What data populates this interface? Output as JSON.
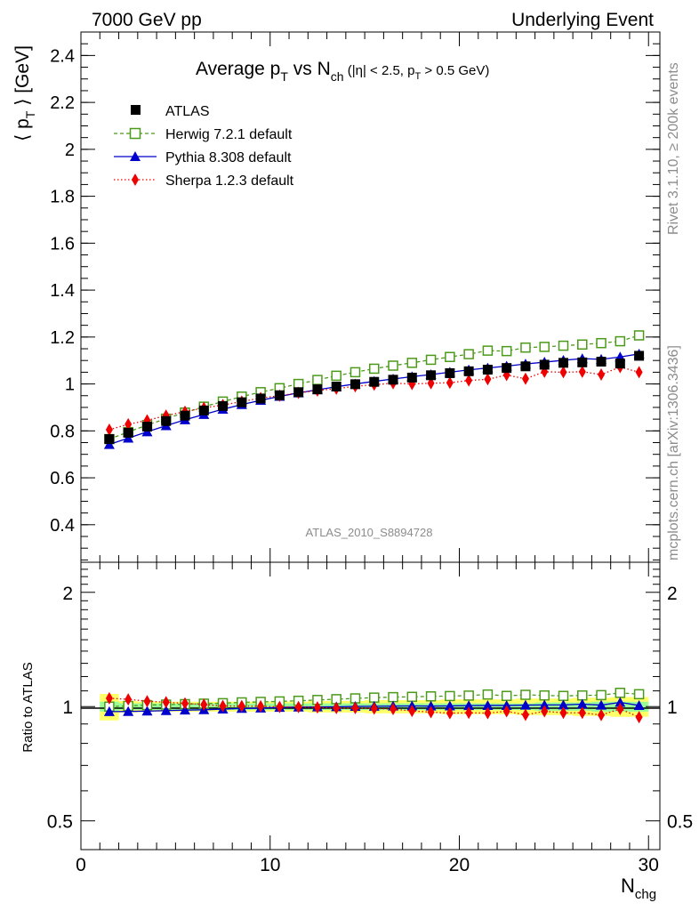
{
  "header": {
    "left": "7000 GeV pp",
    "right": "Underlying Event"
  },
  "side_text": {
    "rivet": "Rivet 3.1.10, ≥ 200k events",
    "mcplots": "mcplots.cern.ch [arXiv:1306.3436]"
  },
  "watermark": "ATLAS_2010_S8894728",
  "colors": {
    "atlas": "#000000",
    "herwig": "#4c9a1a",
    "pythia": "#0000cc",
    "sherpa": "#ee0000",
    "band_inner": "#99ff99",
    "band_outer": "#ffff66"
  },
  "chart_data": [
    {
      "type": "line",
      "panel": "main",
      "title_parts": {
        "main": "Average p",
        "sub1": "T",
        "mid": " vs N",
        "sub2": "ch",
        "cut1": " (|η| < 2.5, p",
        "cut_sub": "T",
        "cut2": " > 0.5 GeV)"
      },
      "ylabel_parts": {
        "open": "⟨ p",
        "sub": "T",
        "close": " ⟩ [GeV]"
      },
      "xlim": [
        0,
        30.6
      ],
      "ylim": [
        0.24,
        2.5
      ],
      "yticks": [
        0.4,
        0.6,
        0.8,
        1,
        1.2,
        1.4,
        1.6,
        1.8,
        2,
        2.2,
        2.4
      ],
      "ytick_labels": [
        "0.4",
        "0.6",
        "0.8",
        "1",
        "1.2",
        "1.4",
        "1.6",
        "1.8",
        "2",
        "2.2",
        "2.4"
      ],
      "x": [
        1.5,
        2.5,
        3.5,
        4.5,
        5.5,
        6.5,
        7.5,
        8.5,
        9.5,
        10.5,
        11.5,
        12.5,
        13.5,
        14.5,
        15.5,
        16.5,
        17.5,
        18.5,
        19.5,
        20.5,
        21.5,
        22.5,
        23.5,
        24.5,
        25.5,
        26.5,
        27.5,
        28.5,
        29.5
      ],
      "series": [
        {
          "name": "ATLAS",
          "marker": "square-filled",
          "line": "none",
          "values": [
            0.765,
            0.792,
            0.818,
            0.842,
            0.865,
            0.887,
            0.906,
            0.922,
            0.938,
            0.952,
            0.965,
            0.977,
            0.989,
            0.999,
            1.009,
            1.018,
            1.027,
            1.037,
            1.046,
            1.054,
            1.061,
            1.068,
            1.075,
            1.082,
            1.09,
            1.092,
            1.095,
            1.087,
            1.12
          ]
        },
        {
          "name": "Herwig 7.2.1 default",
          "marker": "square-open",
          "line": "dashed",
          "values": [
            0.765,
            0.795,
            0.825,
            0.852,
            0.878,
            0.903,
            0.925,
            0.946,
            0.965,
            0.982,
            1.0,
            1.017,
            1.035,
            1.05,
            1.065,
            1.078,
            1.09,
            1.103,
            1.115,
            1.127,
            1.142,
            1.14,
            1.155,
            1.158,
            1.163,
            1.168,
            1.174,
            1.182,
            1.207
          ]
        },
        {
          "name": "Pythia 8.308 default",
          "marker": "triangle-filled",
          "line": "solid",
          "values": [
            0.742,
            0.769,
            0.796,
            0.822,
            0.847,
            0.87,
            0.892,
            0.912,
            0.93,
            0.947,
            0.962,
            0.975,
            0.988,
            1.0,
            1.011,
            1.021,
            1.031,
            1.04,
            1.05,
            1.06,
            1.068,
            1.076,
            1.085,
            1.093,
            1.101,
            1.108,
            1.105,
            1.115,
            1.128
          ]
        },
        {
          "name": "Sherpa 1.2.3 default",
          "marker": "diamond-filled",
          "line": "dotted",
          "values": [
            0.805,
            0.828,
            0.845,
            0.865,
            0.882,
            0.898,
            0.91,
            0.925,
            0.94,
            0.95,
            0.962,
            0.972,
            0.98,
            0.99,
            0.997,
            1.003,
            1.0,
            1.003,
            1.005,
            1.015,
            1.02,
            1.038,
            1.022,
            1.052,
            1.05,
            1.052,
            1.04,
            1.072,
            1.05
          ]
        }
      ]
    },
    {
      "type": "line",
      "panel": "ratio",
      "ylabel": "Ratio to ATLAS",
      "xlabel_parts": {
        "main": "N",
        "sub": "chg"
      },
      "xlim": [
        0,
        30.6
      ],
      "xticks": [
        0,
        10,
        20,
        30
      ],
      "xtick_labels": [
        "0",
        "10",
        "20",
        "30"
      ],
      "log_y": true,
      "ylim": [
        0.42,
        2.4
      ],
      "yticks": [
        0.5,
        1,
        2
      ],
      "ytick_labels": [
        "0.5",
        "1",
        "2"
      ],
      "x": [
        1.5,
        2.5,
        3.5,
        4.5,
        5.5,
        6.5,
        7.5,
        8.5,
        9.5,
        10.5,
        11.5,
        12.5,
        13.5,
        14.5,
        15.5,
        16.5,
        17.5,
        18.5,
        19.5,
        20.5,
        21.5,
        22.5,
        23.5,
        24.5,
        25.5,
        26.5,
        27.5,
        28.5,
        29.5
      ],
      "band_inner_halfwidth": [
        0.03,
        0.02,
        0.02,
        0.02,
        0.02,
        0.02,
        0.02,
        0.02,
        0.02,
        0.02,
        0.02,
        0.02,
        0.02,
        0.02,
        0.02,
        0.02,
        0.02,
        0.02,
        0.02,
        0.02,
        0.02,
        0.02,
        0.02,
        0.025,
        0.025,
        0.025,
        0.03,
        0.03,
        0.03
      ],
      "band_outer_halfwidth": [
        0.08,
        0.035,
        0.03,
        0.03,
        0.03,
        0.03,
        0.03,
        0.03,
        0.03,
        0.03,
        0.03,
        0.035,
        0.035,
        0.035,
        0.04,
        0.04,
        0.04,
        0.04,
        0.045,
        0.045,
        0.045,
        0.045,
        0.05,
        0.05,
        0.05,
        0.055,
        0.055,
        0.06,
        0.06
      ],
      "series": [
        {
          "name": "Herwig 7.2.1 default",
          "marker": "square-open",
          "line": "dashed",
          "values": [
            1.0,
            1.004,
            1.009,
            1.012,
            1.015,
            1.018,
            1.021,
            1.026,
            1.029,
            1.032,
            1.036,
            1.041,
            1.046,
            1.051,
            1.056,
            1.059,
            1.061,
            1.064,
            1.066,
            1.069,
            1.076,
            1.067,
            1.074,
            1.07,
            1.067,
            1.07,
            1.072,
            1.087,
            1.078
          ]
        },
        {
          "name": "Pythia 8.308 default",
          "marker": "triangle-filled",
          "line": "solid",
          "values": [
            0.97,
            0.971,
            0.973,
            0.976,
            0.979,
            0.981,
            0.985,
            0.989,
            0.991,
            0.995,
            0.997,
            0.998,
            0.999,
            1.001,
            1.002,
            1.003,
            1.004,
            1.003,
            1.004,
            1.006,
            1.007,
            1.007,
            1.009,
            1.01,
            1.01,
            1.015,
            1.009,
            1.026,
            1.007
          ]
        },
        {
          "name": "Sherpa 1.2.3 default",
          "marker": "diamond-filled",
          "line": "dotted",
          "values": [
            1.052,
            1.045,
            1.033,
            1.027,
            1.02,
            1.012,
            1.004,
            1.003,
            1.002,
            0.998,
            0.997,
            0.995,
            0.991,
            0.991,
            0.988,
            0.985,
            0.974,
            0.967,
            0.961,
            0.963,
            0.961,
            0.972,
            0.951,
            0.972,
            0.963,
            0.963,
            0.95,
            0.986,
            0.938
          ]
        }
      ]
    }
  ]
}
